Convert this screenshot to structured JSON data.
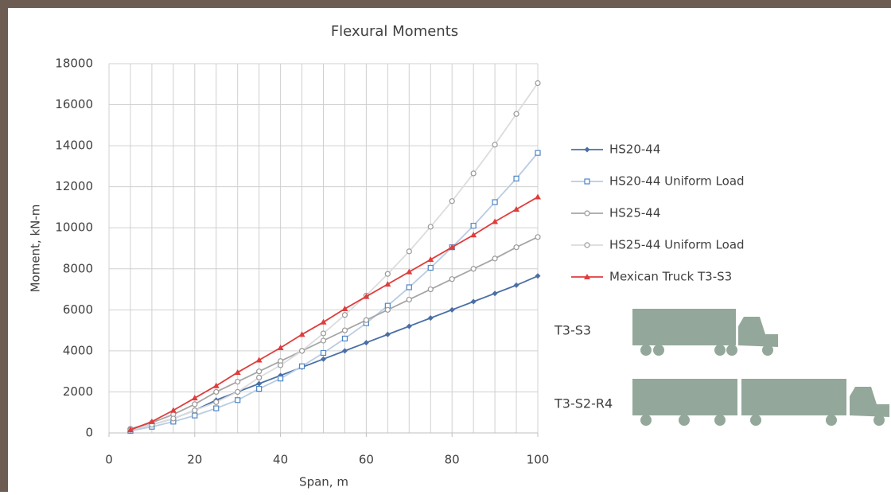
{
  "chart_data": {
    "type": "line",
    "title": "Flexural Moments",
    "x_label": "Span, m",
    "y_label": "Moment, kN-m",
    "x": [
      5,
      10,
      15,
      20,
      25,
      30,
      35,
      40,
      45,
      50,
      55,
      60,
      65,
      70,
      75,
      80,
      85,
      90,
      95,
      100
    ],
    "xlim": [
      0,
      100
    ],
    "xticks": [
      0,
      20,
      40,
      60,
      80,
      100
    ],
    "xgrid": [
      0,
      5,
      10,
      15,
      20,
      25,
      30,
      35,
      40,
      45,
      50,
      55,
      60,
      65,
      70,
      75,
      80,
      85,
      90,
      95,
      100
    ],
    "ylim": [
      0,
      18000
    ],
    "yticks": [
      0,
      2000,
      4000,
      6000,
      8000,
      10000,
      12000,
      14000,
      16000,
      18000
    ],
    "grid": true,
    "legend": "right",
    "series": [
      {
        "name": "HS20-44",
        "color": "#4a6fa5",
        "marker": "diamond",
        "values": [
          150,
          400,
          700,
          1100,
          1600,
          2000,
          2400,
          2800,
          3200,
          3600,
          4000,
          4400,
          4800,
          5200,
          5600,
          6000,
          6400,
          6800,
          7200,
          7650
        ]
      },
      {
        "name": "HS20-44 Uniform Load",
        "color": "#b8cce4",
        "marker": "square",
        "values": [
          100,
          300,
          550,
          850,
          1200,
          1600,
          2150,
          2650,
          3250,
          3900,
          4600,
          5350,
          6200,
          7100,
          8050,
          9050,
          10100,
          11250,
          12400,
          13650
        ]
      },
      {
        "name": "HS25-44",
        "color": "#a6a6a6",
        "marker": "circle",
        "values": [
          200,
          500,
          900,
          1400,
          2000,
          2500,
          3000,
          3500,
          4000,
          4500,
          5000,
          5500,
          6000,
          6500,
          7000,
          7500,
          8000,
          8500,
          9050,
          9550
        ]
      },
      {
        "name": "HS25-44 Uniform Load",
        "color": "#dcdcdc",
        "marker": "circle",
        "values": [
          150,
          400,
          700,
          1100,
          1500,
          2000,
          2700,
          3300,
          4000,
          4850,
          5750,
          6700,
          7750,
          8850,
          10050,
          11300,
          12650,
          14050,
          15550,
          17050
        ]
      },
      {
        "name": "Mexican Truck T3-S3",
        "color": "#e03c3c",
        "marker": "triangle",
        "values": [
          150,
          550,
          1100,
          1700,
          2300,
          2950,
          3550,
          4150,
          4800,
          5400,
          6050,
          6650,
          7250,
          7850,
          8450,
          9050,
          9650,
          10300,
          10900,
          11500
        ]
      }
    ]
  },
  "trucks": [
    {
      "label": "T3-S3"
    },
    {
      "label": "T3-S2-R4"
    }
  ]
}
